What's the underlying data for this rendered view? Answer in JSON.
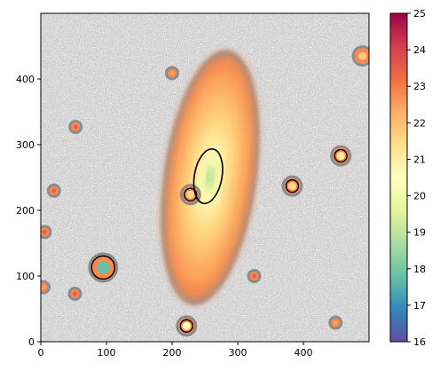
{
  "chart_data": {
    "type": "heatmap",
    "title": "",
    "xlabel": "",
    "ylabel": "",
    "xlim": [
      0,
      500
    ],
    "ylim": [
      0,
      500
    ],
    "x_ticks": [
      0,
      100,
      200,
      300,
      400
    ],
    "y_ticks": [
      0,
      100,
      200,
      300,
      400
    ],
    "colorbar": {
      "colormap": "Spectral_r",
      "range": [
        16,
        25
      ],
      "ticks": [
        16,
        17,
        18,
        19,
        20,
        21,
        22,
        23,
        24,
        25
      ]
    },
    "background_color": "#d3d3d3",
    "galaxy": {
      "center": [
        258,
        250
      ],
      "semi_major": 190,
      "semi_minor": 65,
      "tilt_deg": 8,
      "core_value": 18.3,
      "halo_value": 22.8
    },
    "sources": [
      {
        "x": 95,
        "y": 113,
        "value": 17.8
      },
      {
        "x": 4,
        "y": 83,
        "value": 22.5
      },
      {
        "x": 222,
        "y": 24,
        "value": 20.5
      },
      {
        "x": 457,
        "y": 283,
        "value": 21.0
      },
      {
        "x": 383,
        "y": 237,
        "value": 21.5
      },
      {
        "x": 490,
        "y": 435,
        "value": 21.8
      },
      {
        "x": 200,
        "y": 409,
        "value": 22.5
      },
      {
        "x": 449,
        "y": 29,
        "value": 22.5
      },
      {
        "x": 52,
        "y": 73,
        "value": 23.5
      },
      {
        "x": 6,
        "y": 167,
        "value": 23.5
      },
      {
        "x": 20,
        "y": 230,
        "value": 23.5
      },
      {
        "x": 53,
        "y": 327,
        "value": 23.5
      },
      {
        "x": 325,
        "y": 100,
        "value": 23.5
      },
      {
        "x": 228,
        "y": 224,
        "value": 21.5
      }
    ],
    "contours": [
      {
        "level": 19.5,
        "shape": "galaxy-core"
      },
      {
        "level": 19.5,
        "shape": "star-rings"
      }
    ]
  }
}
